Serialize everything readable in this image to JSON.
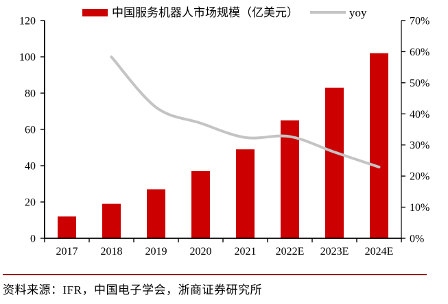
{
  "chart_data": {
    "type": "bar",
    "subtype": "bar-line-combo",
    "categories": [
      "2017",
      "2018",
      "2019",
      "2020",
      "2021",
      "2022E",
      "2023E",
      "2024E"
    ],
    "series": [
      {
        "name": "中国服务机器人市场规模（亿美元）",
        "type": "bar",
        "axis": "left",
        "color": "#CC0000",
        "values": [
          12,
          19,
          27,
          37,
          49,
          65,
          83,
          102
        ]
      },
      {
        "name": "yoy",
        "type": "line",
        "axis": "right",
        "color": "#C4C4C4",
        "values": [
          null,
          58.3,
          42.1,
          37.0,
          32.4,
          32.7,
          27.7,
          22.9
        ]
      }
    ],
    "left_axis": {
      "min": 0,
      "max": 120,
      "step": 20,
      "tick_labels": [
        "0",
        "20",
        "40",
        "60",
        "80",
        "100",
        "120"
      ]
    },
    "right_axis": {
      "min": 0,
      "max": 70,
      "step": 10,
      "tick_labels": [
        "0%",
        "10%",
        "20%",
        "30%",
        "40%",
        "50%",
        "60%",
        "70%"
      ]
    },
    "legend_position": "top",
    "grid": false,
    "axis_color": "#000000"
  },
  "source": {
    "text": "资料来源：IFR，中国电子学会，浙商证券研究所",
    "rule_color": "#990000"
  }
}
